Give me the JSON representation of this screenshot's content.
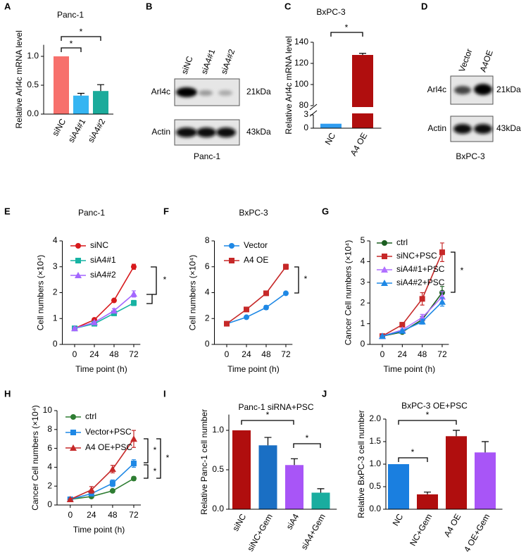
{
  "chart_data": [
    {
      "label": "A",
      "type": "bar",
      "title": "Panc-1",
      "ylabel": "Relative Arl4c mRNA level",
      "categories": [
        "siNC",
        "siA4#1",
        "siA4#2"
      ],
      "values": [
        1.0,
        0.32,
        0.4
      ],
      "errors": [
        0,
        0.04,
        0.11
      ],
      "colors": [
        "#f7706c",
        "#35b5f2",
        "#1bab9b"
      ],
      "ylim": [
        0,
        1.2
      ],
      "yticks": [
        {
          "value": 0,
          "label": "0.0"
        },
        {
          "value": 0.5,
          "label": "0.5"
        },
        {
          "value": 1,
          "label": "1.0"
        }
      ],
      "annotations": [
        "*",
        "*"
      ]
    },
    {
      "label": "C",
      "type": "bar",
      "title": "BxPC-3",
      "ylabel": "Relative Arl4c mRNA level",
      "categories": [
        "NC",
        "A4 OE"
      ],
      "values": [
        1,
        128
      ],
      "errors": [
        0,
        1.5
      ],
      "colors": [
        "#2f9cf0",
        "#b00e0e"
      ],
      "ylim": [
        0,
        140
      ],
      "axis_break": [
        3,
        80
      ],
      "yticks": [
        0,
        3,
        80,
        100,
        120,
        140
      ],
      "annotations": [
        "*"
      ]
    },
    {
      "label": "E",
      "type": "line",
      "title": "Panc-1",
      "ylabel": "Cell numbers (×10⁴)",
      "xlabel": "Time point (h)",
      "x": [
        0,
        24,
        48,
        72
      ],
      "xlim": [
        -15,
        80
      ],
      "xticks": [
        0,
        24,
        48,
        72
      ],
      "ylim": [
        0,
        4
      ],
      "yticks": [
        0,
        1,
        2,
        3,
        4
      ],
      "series": [
        {
          "name": "siNC",
          "color": "#d7191c",
          "marker": "circle",
          "values": [
            0.62,
            0.95,
            1.7,
            3.0
          ],
          "errors": [
            0.03,
            0.05,
            0.05,
            0.1
          ]
        },
        {
          "name": "siA4#1",
          "color": "#17b3a3",
          "marker": "square",
          "values": [
            0.62,
            0.8,
            1.2,
            1.6
          ],
          "errors": [
            0.03,
            0.04,
            0.08,
            0.1
          ]
        },
        {
          "name": "siA4#2",
          "color": "#a366ff",
          "marker": "triangle",
          "values": [
            0.62,
            0.85,
            1.3,
            1.95
          ],
          "errors": [
            0.03,
            0.04,
            0.08,
            0.12
          ]
        }
      ],
      "annotations": [
        "*"
      ]
    },
    {
      "label": "F",
      "type": "line",
      "title": "BxPC-3",
      "ylabel": "Cell numbers (×10⁴)",
      "xlabel": "Time point (h)",
      "x": [
        0,
        24,
        48,
        72
      ],
      "xlim": [
        -15,
        80
      ],
      "xticks": [
        0,
        24,
        48,
        72
      ],
      "ylim": [
        0,
        8
      ],
      "yticks": [
        0,
        2,
        4,
        6,
        8
      ],
      "series": [
        {
          "name": "Vector",
          "color": "#1e88e5",
          "marker": "circle",
          "values": [
            1.6,
            2.1,
            2.85,
            3.95
          ],
          "errors": [
            0.05,
            0.1,
            0.15,
            0.1
          ]
        },
        {
          "name": "A4 OE",
          "color": "#c62828",
          "marker": "square",
          "values": [
            1.6,
            2.7,
            3.95,
            6.0
          ],
          "errors": [
            0.05,
            0.15,
            0.1,
            0.2
          ]
        }
      ],
      "annotations": [
        "*"
      ]
    },
    {
      "label": "G",
      "type": "line",
      "ylabel": "Cancer Cell numbers (×10⁴)",
      "xlabel": "Time point (h)",
      "x": [
        0,
        24,
        48,
        72
      ],
      "xlim": [
        -15,
        80
      ],
      "xticks": [
        0,
        24,
        48,
        72
      ],
      "ylim": [
        0,
        5
      ],
      "yticks": [
        0,
        1,
        2,
        3,
        4,
        5
      ],
      "series": [
        {
          "name": "ctrl",
          "color": "#1b5e20",
          "marker": "circle",
          "values": [
            0.4,
            0.6,
            1.2,
            2.5
          ],
          "errors": [
            0.03,
            0.05,
            0.15,
            0.3
          ]
        },
        {
          "name": "siNC+PSC",
          "color": "#c62828",
          "marker": "square",
          "values": [
            0.4,
            0.95,
            2.2,
            4.45
          ],
          "errors": [
            0.03,
            0.08,
            0.3,
            0.45
          ]
        },
        {
          "name": "siA4#1+PSC",
          "color": "#b070ff",
          "marker": "triangle",
          "values": [
            0.4,
            0.7,
            1.3,
            2.3
          ],
          "errors": [
            0.03,
            0.05,
            0.15,
            0.25
          ]
        },
        {
          "name": "siA4#2+PSC",
          "color": "#1e88e5",
          "marker": "triangle",
          "values": [
            0.4,
            0.65,
            1.1,
            2.05
          ],
          "errors": [
            0.03,
            0.05,
            0.12,
            0.2
          ]
        }
      ],
      "annotations": [
        "*"
      ]
    },
    {
      "label": "H",
      "type": "line",
      "ylabel": "Cancer Cell numbers (×10⁴)",
      "xlabel": "Time point (h)",
      "x": [
        0,
        24,
        48,
        72
      ],
      "xlim": [
        -15,
        80
      ],
      "xticks": [
        0,
        24,
        48,
        72
      ],
      "ylim": [
        0,
        10
      ],
      "yticks": [
        0,
        2,
        4,
        6,
        8,
        10
      ],
      "series": [
        {
          "name": "ctrl",
          "color": "#2e7d32",
          "marker": "circle",
          "values": [
            0.6,
            0.9,
            1.5,
            2.8
          ],
          "errors": [
            0.05,
            0.1,
            0.1,
            0.2
          ]
        },
        {
          "name": "Vector+PSC",
          "color": "#1e88e5",
          "marker": "square",
          "values": [
            0.6,
            1.2,
            2.3,
            4.4
          ],
          "errors": [
            0.05,
            0.15,
            0.35,
            0.4
          ]
        },
        {
          "name": "A4 OE+PSC",
          "color": "#c62828",
          "marker": "triangle",
          "values": [
            0.6,
            1.6,
            3.8,
            7.0
          ],
          "errors": [
            0.05,
            0.35,
            0.4,
            0.9
          ]
        }
      ],
      "annotations": [
        "*",
        "*",
        "*"
      ]
    },
    {
      "label": "I",
      "type": "bar",
      "title": "Panc-1 siRNA+PSC",
      "ylabel": "Relative Panc-1 cell number",
      "categories": [
        "siNC",
        "siNC+Gem",
        "siA4",
        "siA4+Gem"
      ],
      "values": [
        1.0,
        0.81,
        0.56,
        0.21
      ],
      "errors": [
        0,
        0.1,
        0.08,
        0.05
      ],
      "colors": [
        "#b00e0e",
        "#1a6fc4",
        "#a855f7",
        "#19ad9f"
      ],
      "ylim": [
        0,
        1.2
      ],
      "yticks": [
        {
          "value": 0,
          "label": "0.0"
        },
        {
          "value": 0.5,
          "label": "0.5"
        },
        {
          "value": 1,
          "label": "1.0"
        }
      ],
      "annotations": [
        "*",
        "*"
      ]
    },
    {
      "label": "J",
      "type": "bar",
      "title": "BxPC-3 OE+PSC",
      "ylabel": "Relative BxPC-3 cell number",
      "categories": [
        "NC",
        "NC+Gem",
        "A4 OE",
        "A4 OE+Gem"
      ],
      "values": [
        1.0,
        0.33,
        1.62,
        1.26
      ],
      "errors": [
        0,
        0.05,
        0.13,
        0.24
      ],
      "colors": [
        "#1a7fe0",
        "#b00e0e",
        "#b00e0e",
        "#a855f7"
      ],
      "ylim": [
        0,
        2
      ],
      "yticks": [
        {
          "value": 0,
          "label": "0.0"
        },
        {
          "value": 0.5,
          "label": "0.5"
        },
        {
          "value": 1,
          "label": "1.0"
        },
        {
          "value": 1.5,
          "label": "1.5"
        },
        {
          "value": 2,
          "label": "2.0"
        }
      ],
      "annotations": [
        "*",
        "*"
      ]
    }
  ],
  "blots": [
    {
      "label": "B",
      "lanes": [
        "siNC",
        "siA4#1",
        "siA4#2"
      ],
      "rows": [
        "Arl4c",
        "Actin"
      ],
      "sizes": [
        "21kDa",
        "43kDa"
      ],
      "caption": "Panc-1"
    },
    {
      "label": "D",
      "lanes": [
        "Vector",
        "A4OE"
      ],
      "rows": [
        "Arl4c",
        "Actin"
      ],
      "sizes": [
        "21kDa",
        "43kDa"
      ],
      "caption": "BxPC-3"
    }
  ]
}
